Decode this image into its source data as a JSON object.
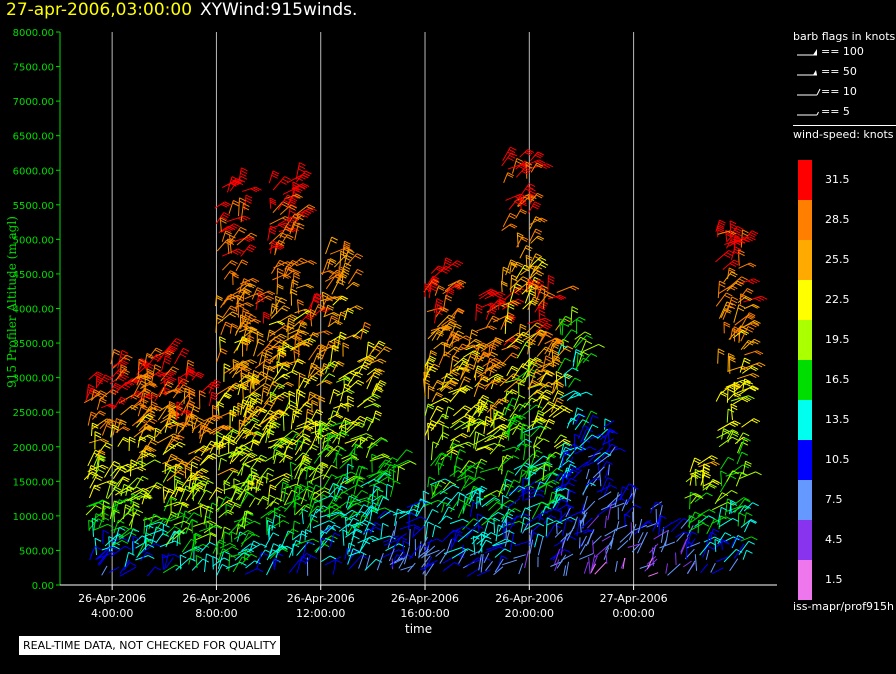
{
  "title": {
    "datetime": "27-apr-2006,03:00:00",
    "name": "XYWind:915winds."
  },
  "notice": "REAL-TIME DATA, NOT CHECKED FOR QUALITY",
  "legend": {
    "flags_title": "barb flags in knots",
    "flags": [
      {
        "label": "== 100"
      },
      {
        "label": "== 50"
      },
      {
        "label": "== 10"
      },
      {
        "label": "== 5"
      }
    ],
    "speed_title": "wind-speed: knots",
    "speed_levels": [
      {
        "label": "31.5",
        "color": "#ff0000"
      },
      {
        "label": "28.5",
        "color": "#ff8000"
      },
      {
        "label": "25.5",
        "color": "#ffaa00"
      },
      {
        "label": "22.5",
        "color": "#ffff00"
      },
      {
        "label": "19.5",
        "color": "#aaff00"
      },
      {
        "label": "16.5",
        "color": "#00dd00"
      },
      {
        "label": "13.5",
        "color": "#00ffee"
      },
      {
        "label": "10.5",
        "color": "#0000ff"
      },
      {
        "label": "7.5",
        "color": "#6699ff"
      },
      {
        "label": "4.5",
        "color": "#8833ee"
      },
      {
        "label": "1.5",
        "color": "#ee77ee"
      }
    ],
    "source": "iss-mapr/prof915h"
  },
  "chart_data": {
    "type": "scatter",
    "ylabel": "915 Profiler Altitude (m agl)",
    "xlabel": "time",
    "ylim": [
      0,
      8000
    ],
    "y_ticks": [
      "0.00",
      "500.00",
      "1000.00",
      "1500.00",
      "2000.00",
      "2500.00",
      "3000.00",
      "3500.00",
      "4000.00",
      "4500.00",
      "5000.00",
      "5500.00",
      "6000.00",
      "6500.00",
      "7000.00",
      "7500.00",
      "8000.00"
    ],
    "xlim_hours": [
      2.0,
      29.5
    ],
    "x_ticks": [
      {
        "hour": 4,
        "line1": "26-Apr-2006",
        "line2": "4:00:00"
      },
      {
        "hour": 8,
        "line1": "26-Apr-2006",
        "line2": "8:00:00"
      },
      {
        "hour": 12,
        "line1": "26-Apr-2006",
        "line2": "12:00:00"
      },
      {
        "hour": 16,
        "line1": "26-Apr-2006",
        "line2": "16:00:00"
      },
      {
        "hour": 20,
        "line1": "26-Apr-2006",
        "line2": "20:00:00"
      },
      {
        "hour": 24,
        "line1": "27-Apr-2006",
        "line2": "0:00:00"
      }
    ],
    "vertical_grid": true,
    "series": [
      {
        "hour": 3.5,
        "top_m": 3000,
        "low_speed": 8,
        "high_speed": 32
      },
      {
        "hour": 4.5,
        "top_m": 3200,
        "low_speed": 10,
        "high_speed": 32
      },
      {
        "hour": 5.5,
        "top_m": 3400,
        "low_speed": 10,
        "high_speed": 32
      },
      {
        "hour": 6.5,
        "top_m": 3200,
        "low_speed": 12,
        "high_speed": 32
      },
      {
        "hour": 7.5,
        "top_m": 2800,
        "low_speed": 12,
        "high_speed": 30
      },
      {
        "hour": 8.5,
        "top_m": 5900,
        "low_speed": 14,
        "high_speed": 32
      },
      {
        "hour": 9.5,
        "top_m": 4200,
        "low_speed": 12,
        "high_speed": 30
      },
      {
        "hour": 10.5,
        "top_m": 5900,
        "low_speed": 12,
        "high_speed": 32
      },
      {
        "hour": 11.5,
        "top_m": 4000,
        "low_speed": 10,
        "high_speed": 30
      },
      {
        "hour": 12.5,
        "top_m": 4800,
        "low_speed": 10,
        "high_speed": 28
      },
      {
        "hour": 13.5,
        "top_m": 3600,
        "low_speed": 9,
        "high_speed": 26
      },
      {
        "hour": 14.5,
        "top_m": 1800,
        "low_speed": 6,
        "high_speed": 18
      },
      {
        "hour": 15.5,
        "top_m": 1200,
        "low_speed": 6,
        "high_speed": 14
      },
      {
        "hour": 16.5,
        "top_m": 4600,
        "low_speed": 8,
        "high_speed": 32
      },
      {
        "hour": 17.5,
        "top_m": 3500,
        "low_speed": 8,
        "high_speed": 26
      },
      {
        "hour": 18.5,
        "top_m": 4200,
        "low_speed": 8,
        "high_speed": 32
      },
      {
        "hour": 19.5,
        "top_m": 6200,
        "low_speed": 6,
        "high_speed": 32
      },
      {
        "hour": 20.5,
        "top_m": 4300,
        "low_speed": 6,
        "high_speed": 32
      },
      {
        "hour": 21.5,
        "top_m": 3800,
        "low_speed": 5,
        "high_speed": 18
      },
      {
        "hour": 22.5,
        "top_m": 2400,
        "low_speed": 4,
        "high_speed": 12
      },
      {
        "hour": 23.5,
        "top_m": 1300,
        "low_speed": 4,
        "high_speed": 10
      },
      {
        "hour": 24.5,
        "top_m": 1100,
        "low_speed": 4,
        "high_speed": 10
      },
      {
        "hour": 25.5,
        "top_m": 900,
        "low_speed": 4,
        "high_speed": 10
      },
      {
        "hour": 26.5,
        "top_m": 1800,
        "low_speed": 6,
        "high_speed": 24
      },
      {
        "hour": 27.7,
        "top_m": 5200,
        "low_speed": 10,
        "high_speed": 32
      }
    ]
  }
}
